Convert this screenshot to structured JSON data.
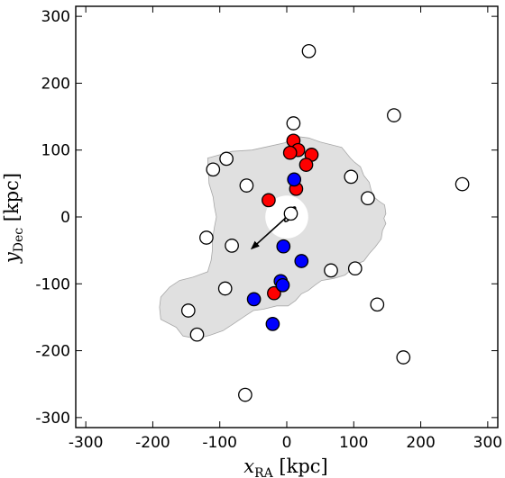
{
  "chart_data": {
    "type": "scatter",
    "xlabel": {
      "symbol": "x",
      "subscript": "RA",
      "unit": "[kpc]"
    },
    "ylabel": {
      "symbol": "y",
      "subscript": "Dec",
      "unit": "[kpc]"
    },
    "xlim": [
      -315,
      315
    ],
    "ylim": [
      -315,
      315
    ],
    "xticks": [
      "-300",
      "-200",
      "-100",
      "0",
      "100",
      "200",
      "300"
    ],
    "yticks": [
      "-300",
      "-200",
      "-100",
      "0",
      "100",
      "200",
      "300"
    ],
    "tick_values": [
      -300,
      -200,
      -100,
      0,
      100,
      200,
      300
    ],
    "grid": false,
    "colors": {
      "region_fill": "#e0e0e0",
      "region_edge": "#a8a8a8",
      "red": "#ff0000",
      "blue": "#0000ff",
      "open": "#ffffff",
      "marker_edge": "#000000"
    },
    "footprint": [
      [
        -118,
        88
      ],
      [
        -82,
        98
      ],
      [
        -52,
        100
      ],
      [
        -25,
        106
      ],
      [
        -2,
        111
      ],
      [
        7,
        118
      ],
      [
        10,
        121
      ],
      [
        33,
        118
      ],
      [
        50,
        112
      ],
      [
        82,
        104
      ],
      [
        95,
        88
      ],
      [
        101,
        82
      ],
      [
        110,
        75
      ],
      [
        115,
        62
      ],
      [
        123,
        52
      ],
      [
        126,
        40
      ],
      [
        130,
        30
      ],
      [
        136,
        25
      ],
      [
        140,
        22
      ],
      [
        146,
        18
      ],
      [
        148,
        5
      ],
      [
        145,
        -2
      ],
      [
        148,
        -10
      ],
      [
        143,
        -20
      ],
      [
        141,
        -33
      ],
      [
        132,
        -45
      ],
      [
        123,
        -55
      ],
      [
        115,
        -66
      ],
      [
        101,
        -72
      ],
      [
        95,
        -80
      ],
      [
        87,
        -87
      ],
      [
        70,
        -92
      ],
      [
        52,
        -95
      ],
      [
        42,
        -102
      ],
      [
        32,
        -110
      ],
      [
        22,
        -115
      ],
      [
        13,
        -125
      ],
      [
        2,
        -133
      ],
      [
        -15,
        -133
      ],
      [
        -35,
        -138
      ],
      [
        -50,
        -140
      ],
      [
        -62,
        -148
      ],
      [
        -80,
        -160
      ],
      [
        -95,
        -170
      ],
      [
        -115,
        -177
      ],
      [
        -135,
        -182
      ],
      [
        -155,
        -178
      ],
      [
        -165,
        -165
      ],
      [
        -188,
        -153
      ],
      [
        -190,
        -135
      ],
      [
        -188,
        -120
      ],
      [
        -175,
        -105
      ],
      [
        -160,
        -95
      ],
      [
        -140,
        -90
      ],
      [
        -118,
        -82
      ],
      [
        -113,
        -65
      ],
      [
        -111,
        -50
      ],
      [
        -111,
        -35
      ],
      [
        -108,
        -15
      ],
      [
        -105,
        0
      ],
      [
        -108,
        15
      ],
      [
        -110,
        30
      ],
      [
        -116,
        50
      ]
    ],
    "excluded_circle": {
      "x": 0,
      "y": 0,
      "r": 32
    },
    "arrow": {
      "from": [
        0,
        0
      ],
      "to": [
        -52,
        -47
      ]
    },
    "center_ellipse": {
      "x": 5,
      "y": 4,
      "rx": 13,
      "ry": 4,
      "angle_deg": 55
    },
    "series": [
      {
        "marker": "red",
        "points": [
          [
            10,
            114
          ],
          [
            17,
            100
          ],
          [
            5,
            96
          ],
          [
            37,
            93
          ],
          [
            29,
            78
          ],
          [
            14,
            42
          ],
          [
            -27,
            25
          ],
          [
            -19,
            -114
          ]
        ]
      },
      {
        "marker": "blue",
        "points": [
          [
            11,
            56
          ],
          [
            -5,
            -44
          ],
          [
            22,
            -66
          ],
          [
            -9,
            -96
          ],
          [
            -6,
            -102
          ],
          [
            -49,
            -123
          ],
          [
            -21,
            -160
          ]
        ]
      },
      {
        "marker": "open",
        "points": [
          [
            33,
            248
          ],
          [
            160,
            152
          ],
          [
            10,
            140
          ],
          [
            -90,
            87
          ],
          [
            -110,
            71
          ],
          [
            -60,
            47
          ],
          [
            96,
            60
          ],
          [
            121,
            28
          ],
          [
            262,
            49
          ],
          [
            -120,
            -31
          ],
          [
            -82,
            -43
          ],
          [
            66,
            -80
          ],
          [
            102,
            -77
          ],
          [
            -92,
            -107
          ],
          [
            135,
            -131
          ],
          [
            -147,
            -140
          ],
          [
            -134,
            -176
          ],
          [
            174,
            -210
          ],
          [
            -62,
            -266
          ],
          [
            6,
            5
          ]
        ]
      }
    ]
  }
}
